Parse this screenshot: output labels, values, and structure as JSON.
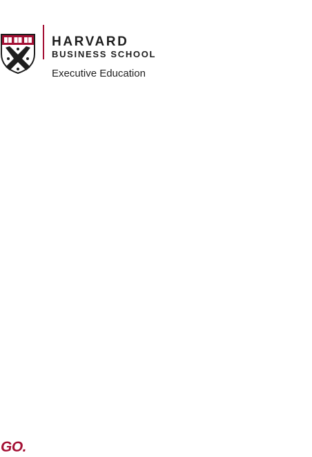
{
  "brand": {
    "school_line1": "HARVARD",
    "school_line2": "BUSINESS SCHOOL",
    "division": "Executive Education",
    "shield_icon": "hbs-veritas-shield-icon",
    "crimson": "#a41034"
  },
  "footer": {
    "tagline": "GO."
  }
}
